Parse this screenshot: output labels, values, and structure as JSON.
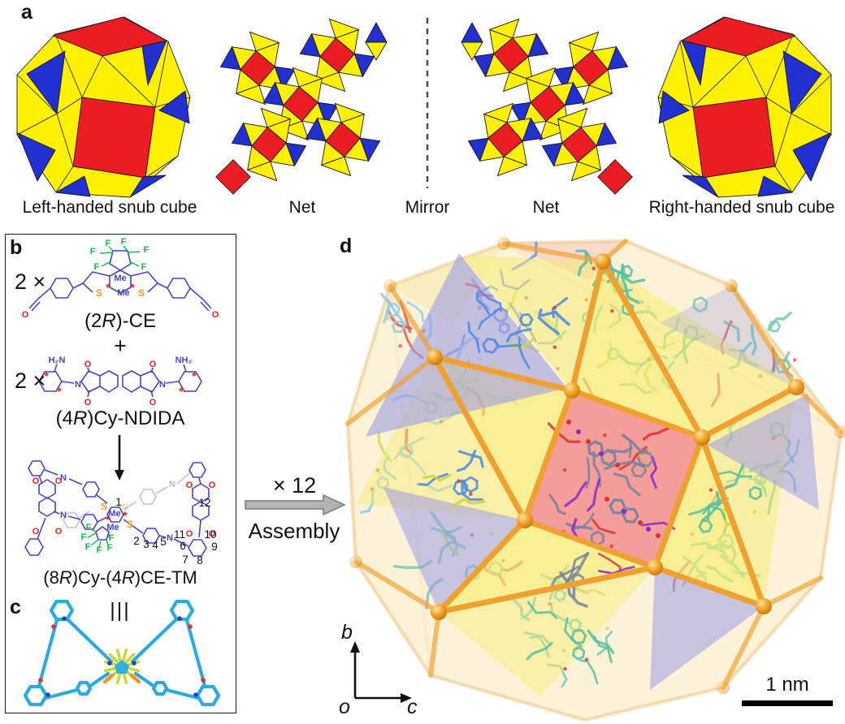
{
  "figure": {
    "panel_a": {
      "label": "a",
      "captions": {
        "left_cube": "Left-handed snub cube",
        "net_left": "Net",
        "mirror": "Mirror",
        "net_right": "Net",
        "right_cube": "Right-handed snub cube"
      }
    },
    "panel_b": {
      "label": "b",
      "stoichiometry_1": "2 ×",
      "compound_1": {
        "parts": [
          "(2",
          "R",
          ")-CE"
        ]
      },
      "plus": "+",
      "stoichiometry_2": "2 ×",
      "compound_2": {
        "parts": [
          "(4",
          "R",
          ")Cy-NDIDA"
        ]
      },
      "product": {
        "parts": [
          "(8",
          "R",
          ")Cy-(4",
          "R",
          ")CE-TM"
        ]
      }
    },
    "panel_c": {
      "label": "c",
      "identity_symbol": "|||"
    },
    "assembly": {
      "multiplier": "× 12",
      "label": "Assembly"
    },
    "panel_d": {
      "label": "d",
      "axes": {
        "b": "b",
        "o": "o",
        "c": "c"
      },
      "scale_bar": "1 nm"
    }
  },
  "atom_labels": {
    "ce": {
      "f": [
        "F",
        "F",
        "F",
        "F",
        "F",
        "F"
      ],
      "s": [
        "S",
        "S"
      ],
      "me": [
        "Me",
        "Me"
      ],
      "o": [
        "O",
        "O"
      ],
      "stereo": [
        "*",
        "*"
      ]
    },
    "ndida": {
      "amine_left": "H₂N",
      "amine_right": "NH₂",
      "o": [
        "O",
        "O",
        "O",
        "O"
      ],
      "n": [
        "N",
        "N"
      ],
      "stereo": [
        "*",
        "*",
        "*",
        "*"
      ]
    },
    "tm": {
      "numbers": [
        "1",
        "2",
        "3",
        "4",
        "5",
        "6",
        "7",
        "8",
        "9",
        "10",
        "11",
        "12"
      ],
      "me": [
        "Me",
        "Me"
      ],
      "s": [
        "S",
        "S",
        "S"
      ],
      "f": [
        "F",
        "F",
        "F",
        "F",
        "F",
        "F"
      ],
      "o": [
        "O",
        "O",
        "O",
        "O",
        "O",
        "O",
        "O",
        "O"
      ],
      "n": [
        "N",
        "N",
        "N",
        "N"
      ],
      "stereo": [
        "*",
        "*"
      ]
    }
  },
  "colors": {
    "face_red": "#EC1C24",
    "face_yellow": "#FFF100",
    "face_blue": "#2230D2",
    "chem_blue": "#4545C4",
    "fluorine_green": "#12B848",
    "sulfur_orange": "#F7941D",
    "oxygen_red": "#ED1C24",
    "cyan_molecule": "#29ABE2",
    "cage_orange": "#F0A030",
    "cage_face_yellow": "#F6EC70",
    "cage_face_blue": "#9C9CE4",
    "cage_face_pink": "#F28E8E",
    "arrow_gray": "#B3B3B3",
    "mol_teal": "#55BEA0",
    "mol_blue": "#4C86E8",
    "mol_lightblue": "#79C2E8",
    "mol_gray": "#76849F",
    "accent_red": "#E03030",
    "accent_yellowgreen": "#C9D83B",
    "accent_purple": "#8A2BC9"
  }
}
